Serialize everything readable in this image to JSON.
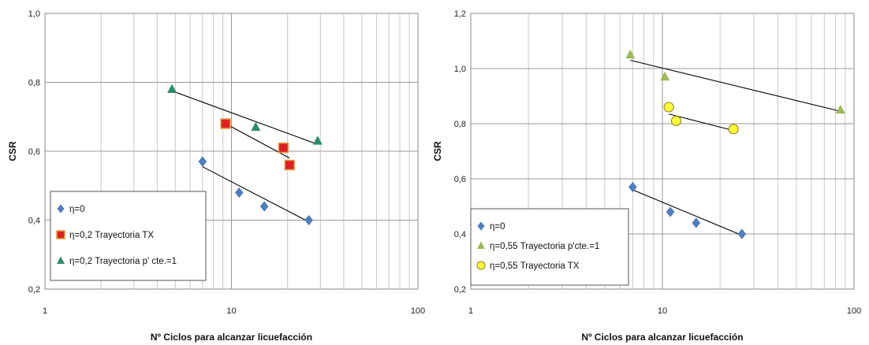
{
  "chart_data": [
    {
      "type": "scatter",
      "xscale": "log",
      "xlim": [
        1,
        100
      ],
      "ylim": [
        0.2,
        1.0
      ],
      "xticks": [
        "1",
        "10",
        "100"
      ],
      "yticks": [
        "0,2",
        "0,4",
        "0,6",
        "0,8",
        "1,0"
      ],
      "xlabel": "Nº Ciclos para alcanzar licuefacción",
      "ylabel": "CSR",
      "grid": true,
      "legend_position": "bottom-left",
      "series": [
        {
          "name": "η=0",
          "marker": "diamond",
          "color": "#4f7fc6",
          "x": [
            7.0,
            11.0,
            15.0,
            26.0
          ],
          "y": [
            0.57,
            0.48,
            0.44,
            0.4
          ],
          "trend": {
            "x": [
              7.0,
              26.0
            ],
            "y": [
              0.555,
              0.395
            ]
          }
        },
        {
          "name": "η=0,2 Trayectoria TX",
          "marker": "square",
          "color": "#e02020",
          "x": [
            9.3,
            19.0,
            20.5
          ],
          "y": [
            0.68,
            0.61,
            0.56
          ],
          "trend": {
            "x": [
              9.3,
              20.5
            ],
            "y": [
              0.68,
              0.58
            ]
          }
        },
        {
          "name": "η=0,2 Trayectoria p' cte.=1",
          "marker": "triangle",
          "color": "#2e8b6e",
          "x": [
            4.8,
            13.5,
            29.0
          ],
          "y": [
            0.78,
            0.67,
            0.63
          ],
          "trend": {
            "x": [
              4.8,
              29.0
            ],
            "y": [
              0.775,
              0.62
            ]
          }
        }
      ]
    },
    {
      "type": "scatter",
      "xscale": "log",
      "xlim": [
        1,
        100
      ],
      "ylim": [
        0.2,
        1.2
      ],
      "xticks": [
        "1",
        "10",
        "100"
      ],
      "yticks": [
        "0,2",
        "0,4",
        "0,6",
        "0,8",
        "1,0",
        "1,2"
      ],
      "xlabel": "Nº Ciclos para alcanzar licuefacción",
      "ylabel": "CSR",
      "grid": true,
      "legend_position": "bottom-left",
      "series": [
        {
          "name": "η=0",
          "marker": "diamond",
          "color": "#4f7fc6",
          "x": [
            7.0,
            11.0,
            15.0,
            26.0
          ],
          "y": [
            0.57,
            0.48,
            0.44,
            0.4
          ],
          "trend": {
            "x": [
              7.0,
              26.0
            ],
            "y": [
              0.56,
              0.395
            ]
          }
        },
        {
          "name": "η=0,55 Trayectoria p'cte.=1",
          "marker": "triangle",
          "color": "#9bbb59",
          "x": [
            6.8,
            10.3,
            85.0
          ],
          "y": [
            1.05,
            0.97,
            0.85
          ],
          "trend": {
            "x": [
              6.8,
              85.0
            ],
            "y": [
              1.03,
              0.845
            ]
          }
        },
        {
          "name": "η=0,55 Trayectoria TX",
          "marker": "circle",
          "color": "#ffff33",
          "x": [
            10.8,
            11.8,
            23.5
          ],
          "y": [
            0.86,
            0.81,
            0.78
          ],
          "trend": {
            "x": [
              10.8,
              23.5
            ],
            "y": [
              0.835,
              0.775
            ]
          }
        }
      ]
    }
  ]
}
